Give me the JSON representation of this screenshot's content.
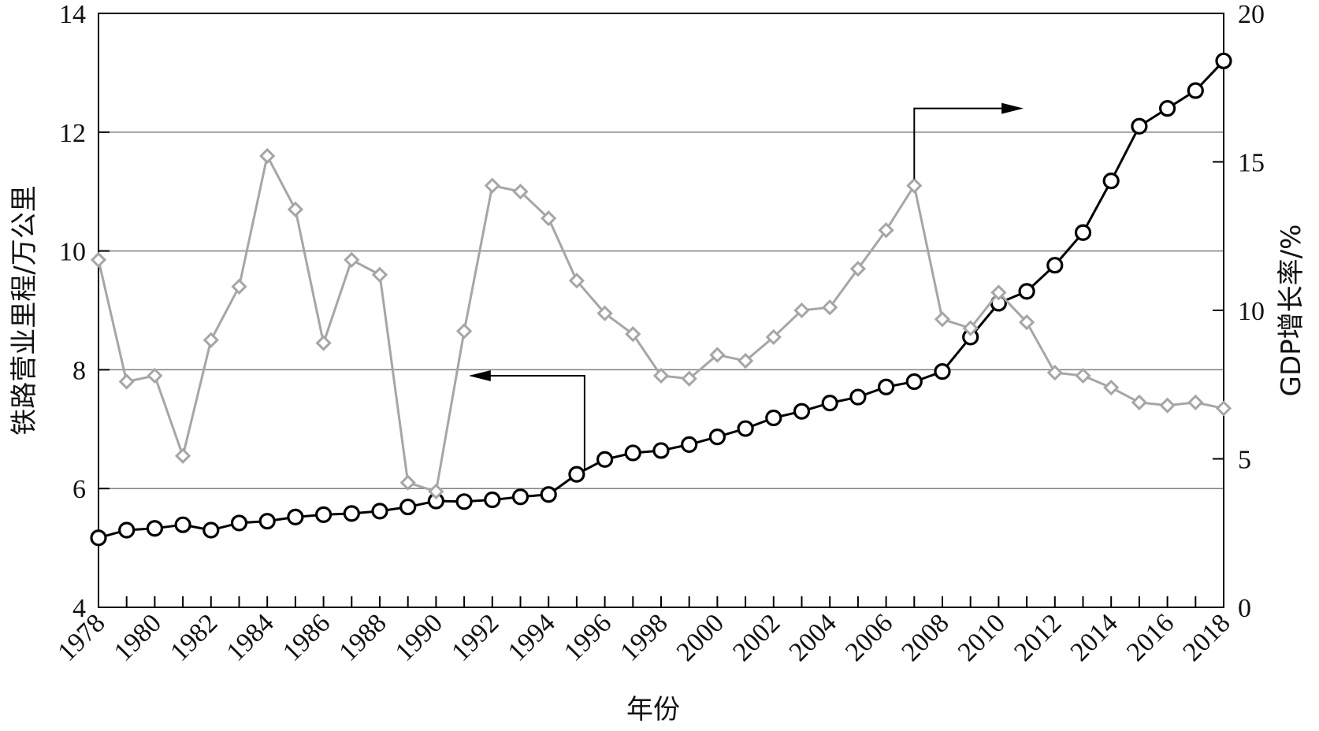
{
  "chart_data": {
    "type": "line",
    "xlabel": "年份",
    "ylabel_left": "铁路营业里程/万公里",
    "ylabel_right": "GDP增长率/%",
    "x_ticks": [
      "1978",
      "1980",
      "1982",
      "1984",
      "1986",
      "1988",
      "1990",
      "1992",
      "1994",
      "1996",
      "1998",
      "2000",
      "2002",
      "2004",
      "2006",
      "2008",
      "2010",
      "2012",
      "2014",
      "2016",
      "2018"
    ],
    "y_left_ticks": [
      "4",
      "6",
      "8",
      "10",
      "12",
      "14"
    ],
    "y_right_ticks": [
      "0",
      "5",
      "10",
      "15",
      "20"
    ],
    "y_left_lim": [
      4,
      14
    ],
    "y_right_lim": [
      0,
      20
    ],
    "x_lim": [
      1978,
      2018
    ],
    "grid": "horizontal",
    "colors": {
      "rail": "#000000",
      "gdp": "#a6a6a6",
      "grid": "#7f7f7f"
    },
    "x": [
      1978,
      1979,
      1980,
      1981,
      1982,
      1983,
      1984,
      1985,
      1986,
      1987,
      1988,
      1989,
      1990,
      1991,
      1992,
      1993,
      1994,
      1995,
      1996,
      1997,
      1998,
      1999,
      2000,
      2001,
      2002,
      2003,
      2004,
      2005,
      2006,
      2007,
      2008,
      2009,
      2010,
      2011,
      2012,
      2013,
      2014,
      2015,
      2016,
      2017,
      2018
    ],
    "series": [
      {
        "axis": "left",
        "marker": "circle",
        "values": [
          5.17,
          5.3,
          5.33,
          5.39,
          5.3,
          5.42,
          5.45,
          5.52,
          5.56,
          5.58,
          5.62,
          5.69,
          5.79,
          5.78,
          5.81,
          5.86,
          5.9,
          6.24,
          6.49,
          6.6,
          6.64,
          6.74,
          6.87,
          7.01,
          7.19,
          7.3,
          7.44,
          7.54,
          7.71,
          7.8,
          7.97,
          8.55,
          9.12,
          9.32,
          9.76,
          10.31,
          11.18,
          12.1,
          12.4,
          12.7,
          13.2
        ]
      },
      {
        "axis": "right",
        "marker": "diamond",
        "values": [
          11.7,
          7.6,
          7.8,
          5.1,
          9.0,
          10.8,
          15.2,
          13.4,
          8.9,
          11.7,
          11.2,
          4.2,
          3.9,
          9.3,
          14.2,
          14.0,
          13.1,
          11.0,
          9.9,
          9.2,
          7.8,
          7.7,
          8.5,
          8.3,
          9.1,
          10.0,
          10.1,
          11.4,
          12.7,
          14.2,
          9.7,
          9.4,
          10.6,
          9.6,
          7.9,
          7.8,
          7.4,
          6.9,
          6.8,
          6.9,
          6.7
        ]
      }
    ],
    "annotations": [
      {
        "type": "arrow",
        "direction": "left",
        "points_to": "left axis",
        "from_year": 1995
      },
      {
        "type": "arrow",
        "direction": "right",
        "points_to": "right axis",
        "from_year": 2007
      }
    ]
  }
}
